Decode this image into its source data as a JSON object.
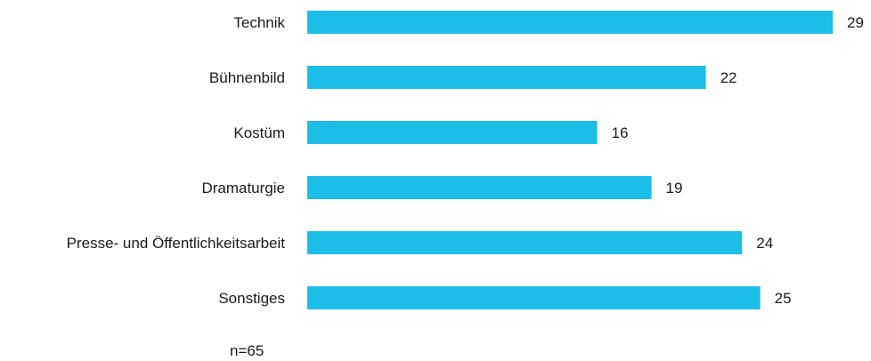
{
  "chart_data": {
    "type": "bar",
    "orientation": "horizontal",
    "categories": [
      "Technik",
      "Bühnenbild",
      "Kostüm",
      "Dramaturgie",
      "Presse- und Öffentlichkeitsarbeit",
      "Sonstiges"
    ],
    "values": [
      29,
      22,
      16,
      19,
      24,
      25
    ],
    "bar_color": "#1cbde6",
    "title": "",
    "xlabel": "",
    "ylabel": "",
    "xlim": [
      0,
      29
    ],
    "grid": false,
    "legend": "none",
    "note": "n=65"
  }
}
